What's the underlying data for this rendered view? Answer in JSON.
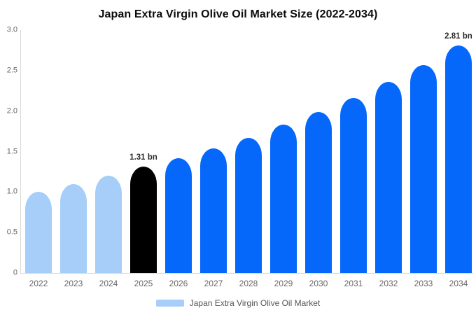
{
  "title": "Japan Extra Virgin Olive Oil Market Size (2022-2034)",
  "chart_data": {
    "type": "bar",
    "title": "Japan Extra Virgin Olive Oil Market Size (2022-2034)",
    "categories": [
      "2022",
      "2023",
      "2024",
      "2025",
      "2026",
      "2027",
      "2028",
      "2029",
      "2030",
      "2031",
      "2032",
      "2033",
      "2034"
    ],
    "values": [
      1.0,
      1.1,
      1.2,
      1.31,
      1.42,
      1.54,
      1.67,
      1.83,
      1.99,
      2.16,
      2.36,
      2.57,
      2.81
    ],
    "unit": "bn",
    "bar_colors": [
      "#a6cef8",
      "#a6cef8",
      "#a6cef8",
      "#000000",
      "#0568fb",
      "#0568fb",
      "#0568fb",
      "#0568fb",
      "#0568fb",
      "#0568fb",
      "#0568fb",
      "#0568fb",
      "#0568fb"
    ],
    "ylim": [
      0,
      3
    ],
    "yticks": [
      {
        "value": 0,
        "label": "0"
      },
      {
        "value": 0.5,
        "label": "0.5"
      },
      {
        "value": 1,
        "label": "1.0"
      },
      {
        "value": 1.5,
        "label": "1.5"
      },
      {
        "value": 2,
        "label": "2.0"
      },
      {
        "value": 2.5,
        "label": "2.5"
      },
      {
        "value": 3,
        "label": "3.0"
      }
    ],
    "annotations": [
      {
        "category": "2025",
        "text": "1.31 bn"
      },
      {
        "category": "2034",
        "text": "2.81 bn"
      }
    ],
    "grid": false,
    "legend_position": "bottom-center"
  },
  "legend": {
    "label": "Japan Extra Virgin Olive Oil Market",
    "swatch_color": "#a6cef8"
  },
  "colors": {
    "background": "#ffffff",
    "title_text": "#0b0b0b",
    "axis_line": "#d9d9d9",
    "tick_text": "#666666",
    "annotation_text": "#2b2b2b",
    "legend_text": "#555555",
    "bar_light_blue": "#a6cef8",
    "bar_blue": "#0568fb",
    "bar_black": "#000000"
  }
}
